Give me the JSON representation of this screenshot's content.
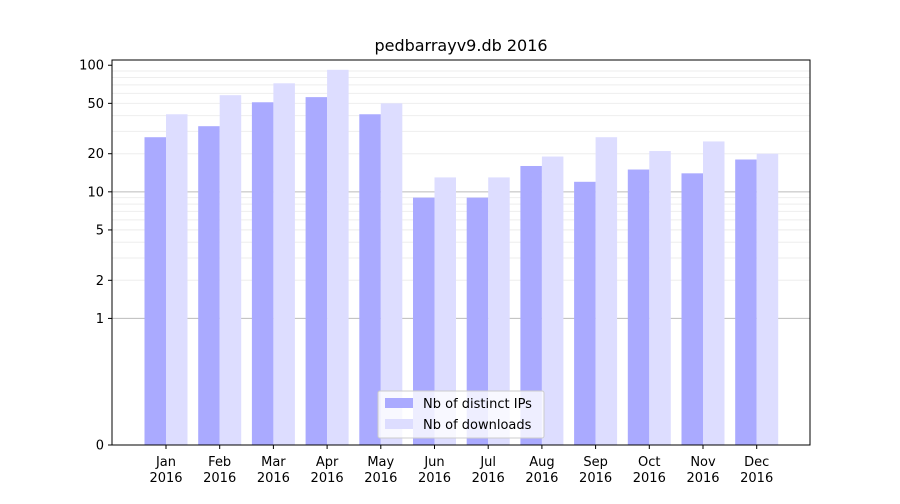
{
  "chart_data": {
    "type": "bar",
    "title": "pedbarrayv9.db 2016",
    "xlabel": "",
    "ylabel": "",
    "scale": "symlog",
    "yticks": [
      {
        "value": 0,
        "label": "0"
      },
      {
        "value": 1,
        "label": "1"
      },
      {
        "value": 2,
        "label": "2"
      },
      {
        "value": 5,
        "label": "5"
      },
      {
        "value": 10,
        "label": "10"
      },
      {
        "value": 20,
        "label": "20"
      },
      {
        "value": 50,
        "label": "50"
      },
      {
        "value": 100,
        "label": "100"
      }
    ],
    "ylim": [
      0,
      110
    ],
    "categories": [
      [
        "Jan",
        "2016"
      ],
      [
        "Feb",
        "2016"
      ],
      [
        "Mar",
        "2016"
      ],
      [
        "Apr",
        "2016"
      ],
      [
        "May",
        "2016"
      ],
      [
        "Jun",
        "2016"
      ],
      [
        "Jul",
        "2016"
      ],
      [
        "Aug",
        "2016"
      ],
      [
        "Sep",
        "2016"
      ],
      [
        "Oct",
        "2016"
      ],
      [
        "Nov",
        "2016"
      ],
      [
        "Dec",
        "2016"
      ]
    ],
    "series": [
      {
        "name": "Nb of distinct IPs",
        "color": "#aaaaff",
        "values": [
          27,
          33,
          51,
          56,
          41,
          9,
          9,
          16,
          12,
          15,
          14,
          18
        ]
      },
      {
        "name": "Nb of downloads",
        "color": "#ddddff",
        "values": [
          41,
          58,
          72,
          92,
          50,
          13,
          13,
          19,
          27,
          21,
          25,
          20
        ]
      }
    ],
    "grid": true,
    "legend": "bottom-center"
  }
}
